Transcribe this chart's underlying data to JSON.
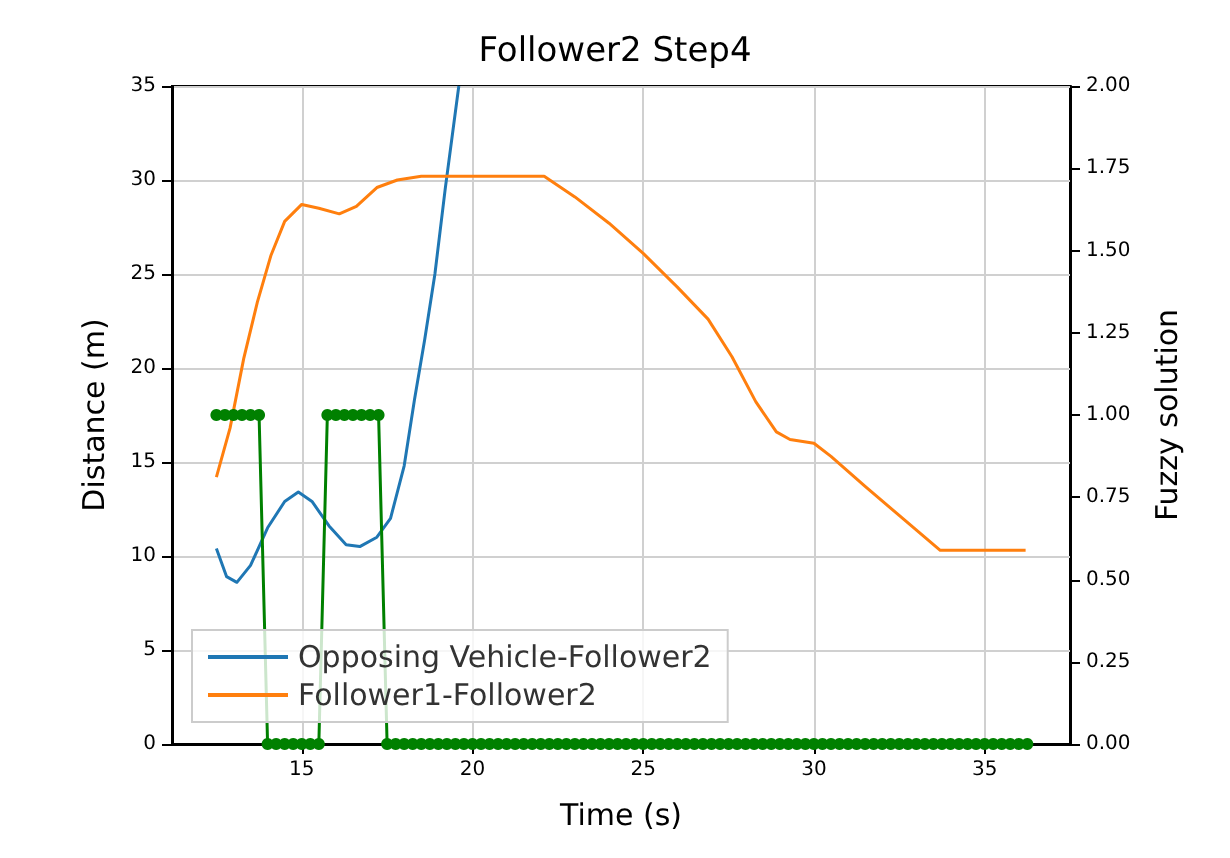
{
  "chart_data": {
    "type": "line",
    "title": "Follower2 Step4",
    "xlabel": "Time (s)",
    "ylabel": "Distance (m)",
    "y2label": "Fuzzy solution",
    "xlim": [
      11.2,
      37.5
    ],
    "xticks": [
      15,
      20,
      25,
      30,
      35
    ],
    "ylim": [
      0,
      35
    ],
    "yticks": [
      0,
      5,
      10,
      15,
      20,
      25,
      30,
      35
    ],
    "y2lim": [
      0,
      2
    ],
    "y2ticks": [
      {
        "value": 0,
        "label": "0.00"
      },
      {
        "value": 0.25,
        "label": "0.25"
      },
      {
        "value": 0.5,
        "label": "0.50"
      },
      {
        "value": 0.75,
        "label": "0.75"
      },
      {
        "value": 1,
        "label": "1.00"
      },
      {
        "value": 1.25,
        "label": "1.25"
      },
      {
        "value": 1.5,
        "label": "1.50"
      },
      {
        "value": 1.75,
        "label": "1.75"
      },
      {
        "value": 2,
        "label": "2.00"
      }
    ],
    "grid": true,
    "legend": "bottom left",
    "marker": "none",
    "line_style": "solid",
    "series": [
      {
        "name": "Opposing Vehicle-Follower2",
        "color": "#1f77b4",
        "x": [
          12.5,
          12.8,
          13.1,
          13.5,
          14,
          14.5,
          14.9,
          15.3,
          15.8,
          16.3,
          16.7,
          17.2,
          17.6,
          18,
          18.3,
          18.6,
          18.9,
          19.2,
          19.6
        ],
        "values": [
          10.4,
          8.9,
          8.6,
          9.5,
          11.5,
          12.9,
          13.4,
          12.9,
          11.6,
          10.6,
          10.5,
          11.0,
          12.0,
          14.8,
          18.3,
          21.5,
          25.0,
          29.5,
          35.0
        ]
      },
      {
        "name": "Follower1-Follower2",
        "color": "#ff7f0e",
        "x": [
          12.5,
          12.9,
          13.3,
          13.7,
          14.1,
          14.5,
          15,
          15.5,
          16.1,
          16.6,
          17.2,
          17.8,
          18.5,
          19.5,
          20.5,
          21.5,
          22.1,
          23,
          24,
          25,
          26,
          26.9,
          27.6,
          28.3,
          28.9,
          29.3,
          30,
          30.5,
          31.5,
          32.6,
          33.7,
          35,
          36.2
        ],
        "values": [
          14.2,
          16.8,
          20.5,
          23.5,
          26,
          27.8,
          28.7,
          28.5,
          28.2,
          28.6,
          29.6,
          30,
          30.2,
          30.2,
          30.2,
          30.2,
          30.2,
          29.1,
          27.7,
          26.1,
          24.3,
          22.6,
          20.6,
          18.2,
          16.6,
          16.2,
          16.0,
          15.3,
          13.7,
          12.0,
          10.3,
          10.3,
          10.3
        ]
      },
      {
        "color": "#008000",
        "axis": "y2",
        "marker": "circle",
        "x": [
          12.5,
          12.75,
          13,
          13.25,
          13.5,
          13.75,
          14,
          14.25,
          14.5,
          14.75,
          15,
          15.25,
          15.5,
          15.75,
          16,
          16.25,
          16.5,
          16.75,
          17,
          17.25,
          17.5,
          17.75,
          18,
          18.25,
          18.5,
          18.75,
          19,
          19.25,
          19.5,
          19.75,
          20,
          20.25,
          20.5,
          20.75,
          21,
          21.25,
          21.5,
          21.75,
          22,
          22.25,
          22.5,
          22.75,
          23,
          23.25,
          23.5,
          23.75,
          24,
          24.25,
          24.5,
          24.75,
          25,
          25.25,
          25.5,
          25.75,
          26,
          26.25,
          26.5,
          26.75,
          27,
          27.25,
          27.5,
          27.75,
          28,
          28.25,
          28.5,
          28.75,
          29,
          29.25,
          29.5,
          29.75,
          30,
          30.25,
          30.5,
          30.75,
          31,
          31.25,
          31.5,
          31.75,
          32,
          32.25,
          32.5,
          32.75,
          33,
          33.25,
          33.5,
          33.75,
          34,
          34.25,
          34.5,
          34.75,
          35,
          35.25,
          35.5,
          35.75,
          36,
          36.25
        ],
        "values": [
          1,
          1,
          1,
          1,
          1,
          1,
          0,
          0,
          0,
          0,
          0,
          0,
          0,
          1,
          1,
          1,
          1,
          1,
          1,
          1,
          0,
          0,
          0,
          0,
          0,
          0,
          0,
          0,
          0,
          0,
          0,
          0,
          0,
          0,
          0,
          0,
          0,
          0,
          0,
          0,
          0,
          0,
          0,
          0,
          0,
          0,
          0,
          0,
          0,
          0,
          0,
          0,
          0,
          0,
          0,
          0,
          0,
          0,
          0,
          0,
          0,
          0,
          0,
          0,
          0,
          0,
          0,
          0,
          0,
          0,
          0,
          0,
          0,
          0,
          0,
          0,
          0,
          0,
          0,
          0,
          0,
          0,
          0,
          0,
          0,
          0,
          0,
          0,
          0,
          0,
          0,
          0,
          0,
          0,
          0,
          0
        ]
      }
    ]
  }
}
